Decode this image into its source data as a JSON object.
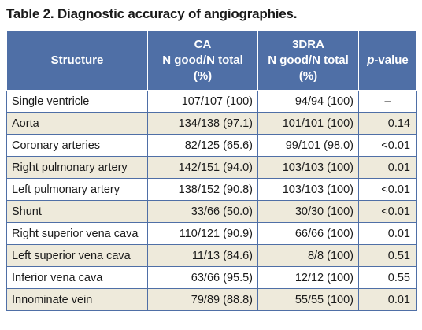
{
  "caption": "Table 2. Diagnostic accuracy of angiographies.",
  "table": {
    "headers": {
      "structure": "Structure",
      "ca": [
        "CA",
        "N good/N total",
        "(%)"
      ],
      "dra": [
        "3DRA",
        "N good/N total",
        "(%)"
      ],
      "pvalue_italic": "p",
      "pvalue_rest": "-value"
    },
    "rows": [
      {
        "structure": "Single ventricle",
        "ca": "107/107 (100)",
        "dra": "94/94 (100)",
        "p": "–"
      },
      {
        "structure": "Aorta",
        "ca": "134/138 (97.1)",
        "dra": "101/101 (100)",
        "p": "0.14"
      },
      {
        "structure": "Coronary arteries",
        "ca": "82/125 (65.6)",
        "dra": "99/101 (98.0)",
        "p": "<0.01"
      },
      {
        "structure": "Right pulmonary artery",
        "ca": "142/151 (94.0)",
        "dra": "103/103 (100)",
        "p": "0.01"
      },
      {
        "structure": "Left pulmonary artery",
        "ca": "138/152 (90.8)",
        "dra": "103/103 (100)",
        "p": "<0.01"
      },
      {
        "structure": "Shunt",
        "ca": "33/66 (50.0)",
        "dra": "30/30 (100)",
        "p": "<0.01"
      },
      {
        "structure": "Right superior vena cava",
        "ca": "110/121 (90.9)",
        "dra": "66/66 (100)",
        "p": "0.01"
      },
      {
        "structure": "Left superior vena cava",
        "ca": "11/13 (84.6)",
        "dra": "8/8 (100)",
        "p": "0.51"
      },
      {
        "structure": "Inferior vena cava",
        "ca": "63/66 (95.5)",
        "dra": "12/12 (100)",
        "p": "0.55"
      },
      {
        "structure": "Innominate vein",
        "ca": "79/89 (88.8)",
        "dra": "55/55 (100)",
        "p": "0.01"
      }
    ]
  },
  "colors": {
    "header_bg": "#4f6fa6",
    "header_text": "#ffffff",
    "row_alt_bg": "#eeeadb",
    "border": "#4f6fa6"
  }
}
